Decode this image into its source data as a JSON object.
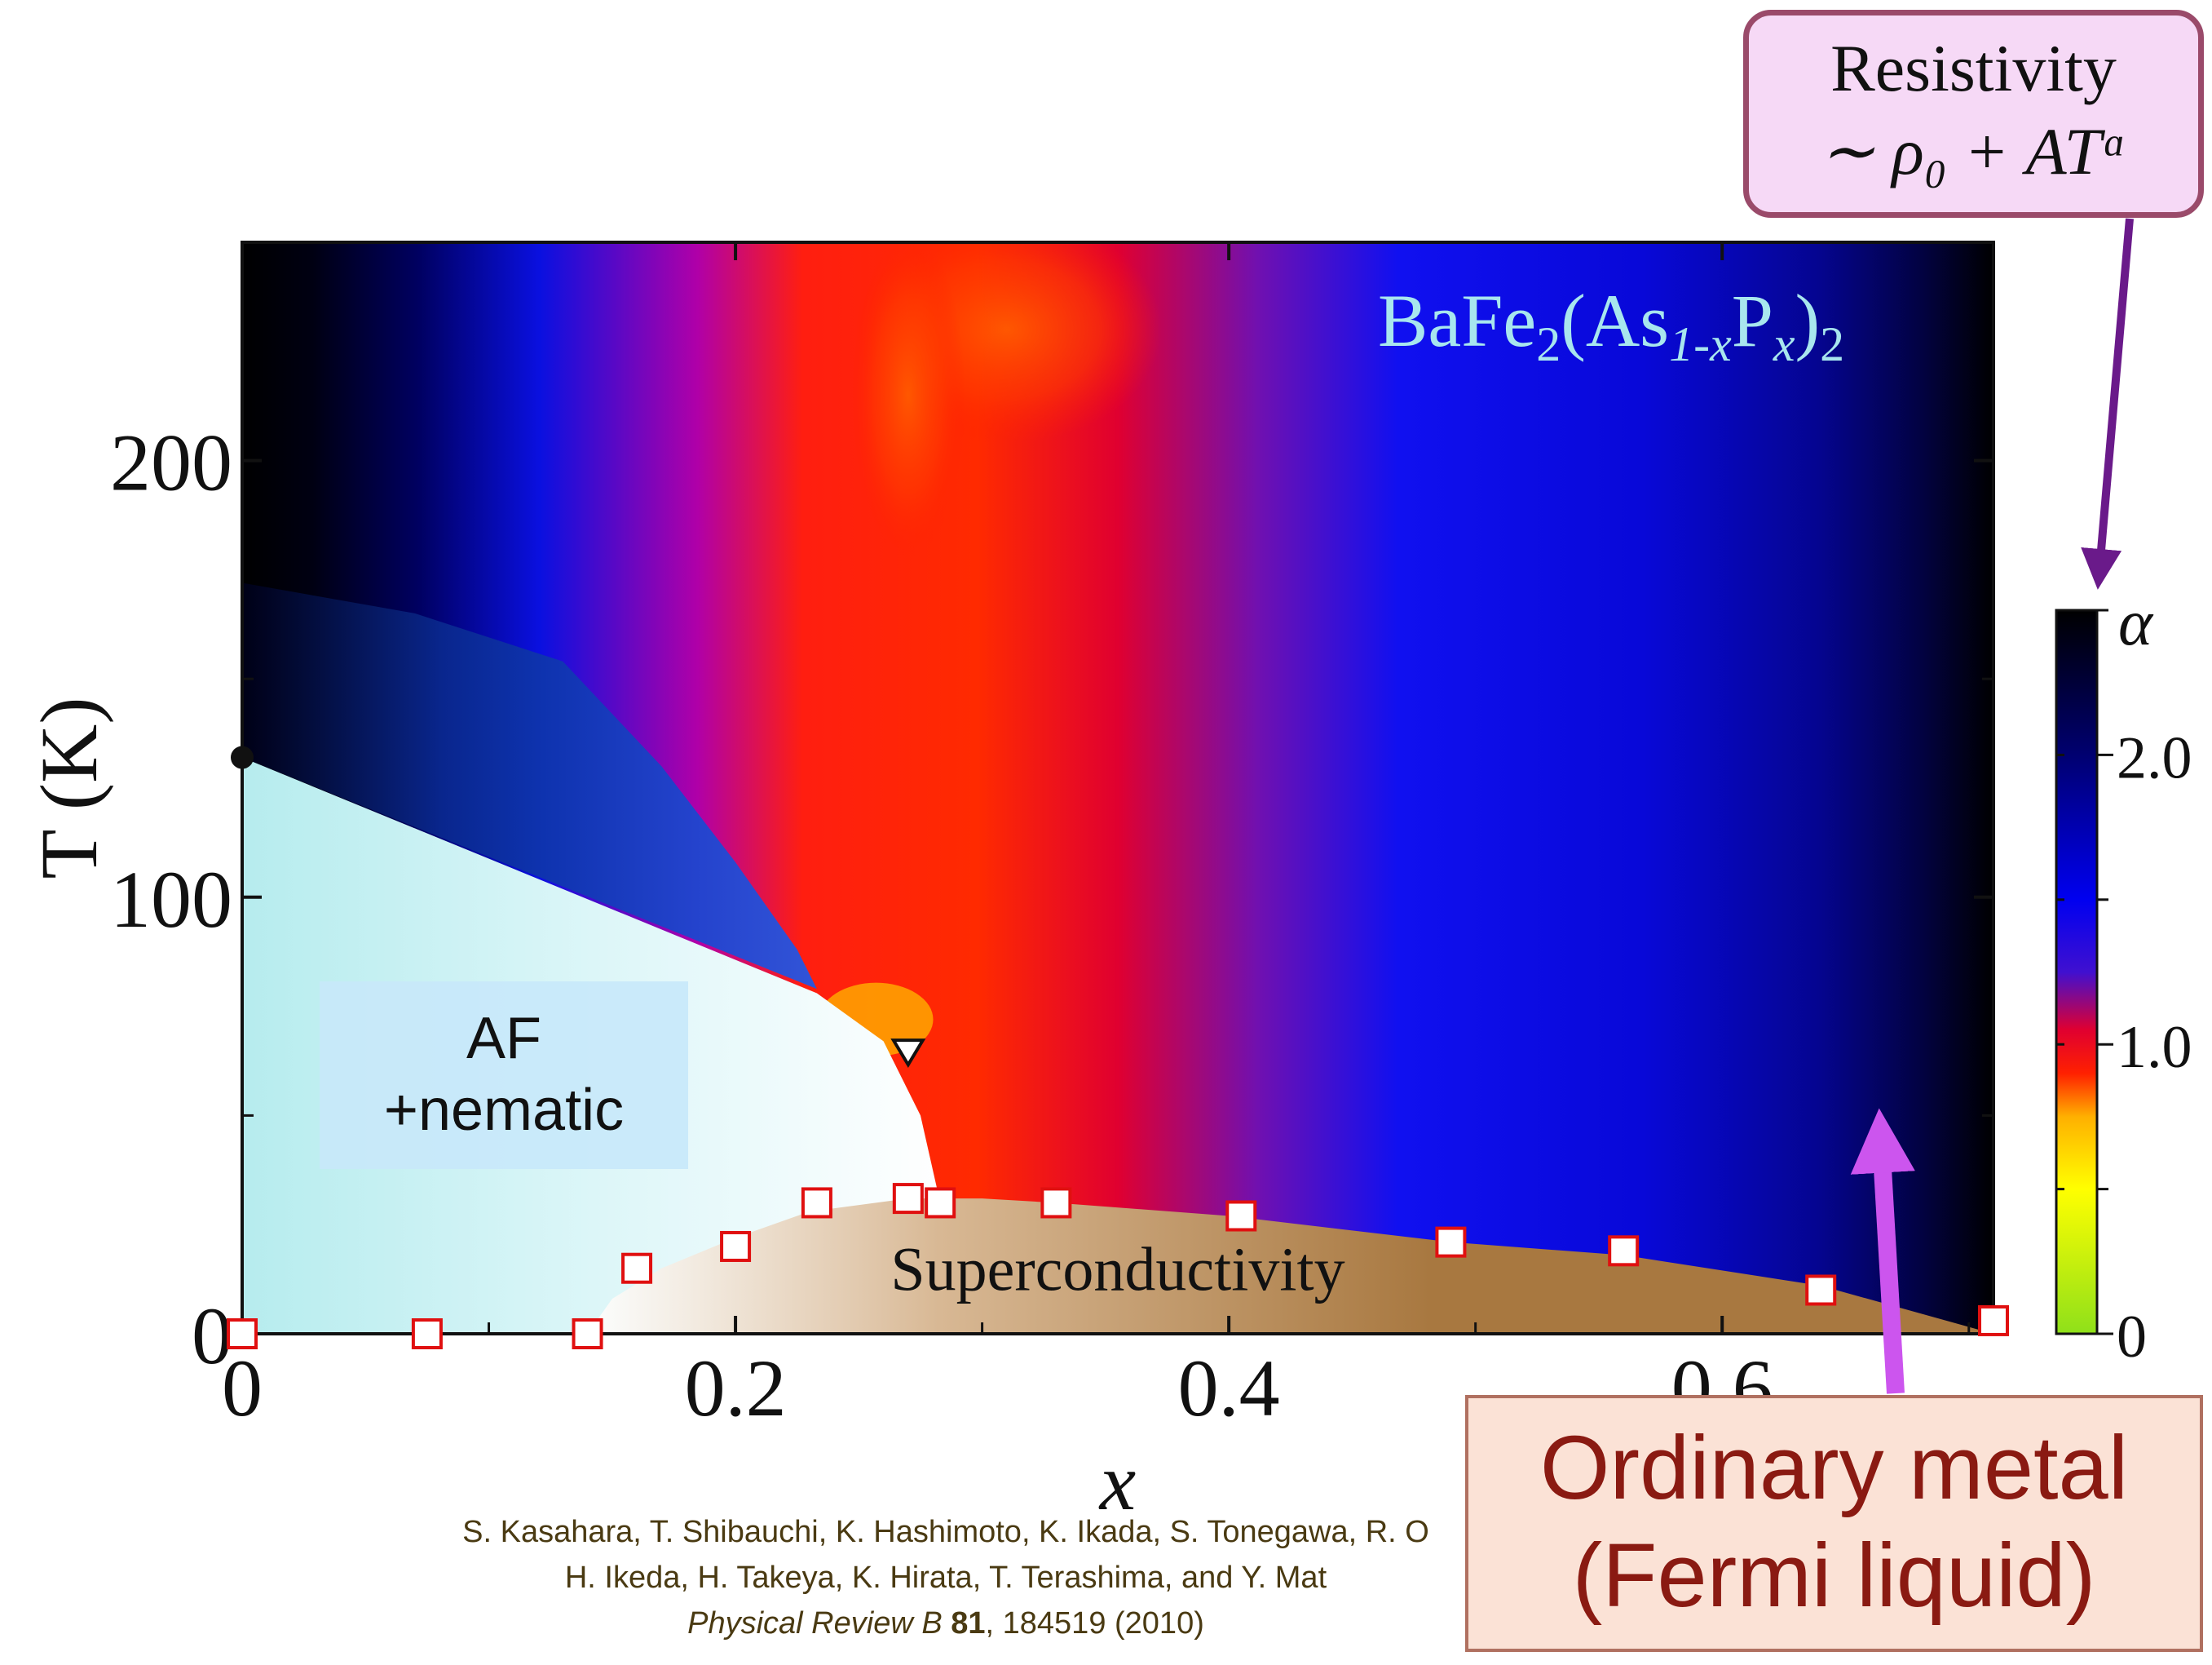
{
  "chart_data": {
    "type": "heatmap",
    "title": "",
    "compound": {
      "base": "BaFe",
      "sub1": "2",
      "mid": "(As",
      "sub2": "1-x",
      "p": "P",
      "sub3": "x",
      "close": ")",
      "sub4": "2"
    },
    "xlabel": "x",
    "ylabel": "T (K)",
    "xlim": [
      0,
      0.71
    ],
    "ylim": [
      0,
      250
    ],
    "x_ticks": [
      "0",
      "0.2",
      "0.4",
      "0.6"
    ],
    "x_tick_values": [
      0,
      0.2,
      0.4,
      0.6
    ],
    "y_ticks": [
      "0",
      "100",
      "200"
    ],
    "y_tick_values": [
      0,
      100,
      200
    ],
    "colorbar": {
      "label": "α",
      "ticks": [
        "0",
        "1.0",
        "2.0"
      ],
      "tick_values": [
        0,
        1.0,
        2.0
      ],
      "range": [
        0,
        2.5
      ],
      "colors": [
        "#8fe01a",
        "#ffff00",
        "#ffb000",
        "#ff4000",
        "#ff0000",
        "#0000ff",
        "#000040",
        "#000000"
      ]
    },
    "regions": [
      {
        "name": "AF\n+nematic",
        "label_lines": [
          "AF",
          "+nematic"
        ]
      },
      {
        "name": "Superconductivity",
        "label": "Superconductivity"
      }
    ],
    "tc_points": {
      "marker": "open-square",
      "color": "#e01010",
      "x": [
        0.0,
        0.075,
        0.14,
        0.16,
        0.2,
        0.233,
        0.27,
        0.283,
        0.33,
        0.405,
        0.49,
        0.56,
        0.64,
        0.71
      ],
      "y": [
        0,
        0,
        0,
        15,
        20,
        30,
        31,
        30,
        30,
        27,
        21,
        19,
        10,
        3
      ]
    },
    "tn_point": {
      "marker": "triangle-down",
      "x": 0.27,
      "y": 65
    }
  },
  "annotations": {
    "resistivity_title": "Resistivity",
    "resistivity_formula": "∼ ρ₀ + ATᵅ",
    "ordinary_metal_line1": "Ordinary metal",
    "ordinary_metal_line2": "(Fermi liquid)"
  },
  "citation": {
    "line1": "S. Kasahara, T. Shibauchi, K. Hashimoto, K. Ikada, S. Tonegawa, R. O",
    "line2": "H. Ikeda, H. Takeya, K. Hirata, T. Terashima, and Y. Mat",
    "journal": "Physical Review B",
    "volume": "81",
    "pages": ", 184519 (2010)"
  },
  "colors": {
    "arrow_purple": "#6a1a8a",
    "arrow_magenta": "#cc55ee",
    "sc_brown": "#a87840",
    "af_cyan": "#c0eef0"
  }
}
